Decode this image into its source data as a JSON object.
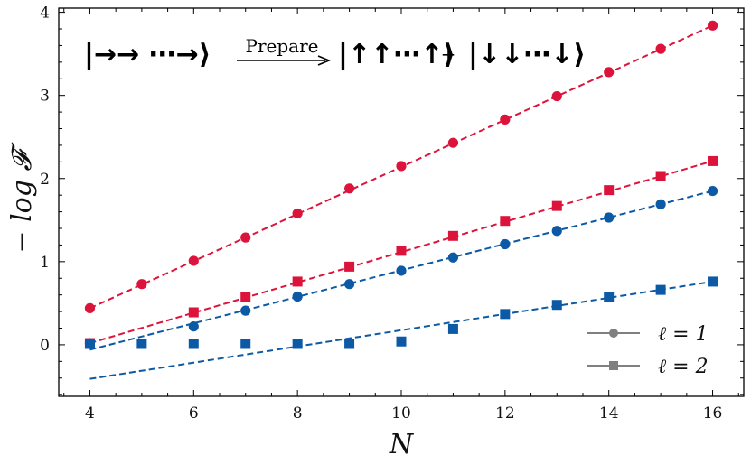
{
  "chart_data": {
    "type": "scatter",
    "title": "",
    "xlabel": "N",
    "ylabel": "− log 𝓕",
    "xlim": [
      3.4,
      16.6
    ],
    "ylim": [
      -0.62,
      4.05
    ],
    "xticks": [
      4,
      6,
      8,
      10,
      12,
      14,
      16
    ],
    "yticks": [
      0,
      1,
      2,
      3,
      4
    ],
    "grid": false,
    "legend_position": "bottom-right",
    "colors": {
      "red": "#dc143c",
      "blue": "#0c5aa6",
      "legend_gray": "#808080"
    },
    "series": [
      {
        "name": "red l=1 data",
        "color": "#dc143c",
        "marker": "circle",
        "x": [
          4,
          5,
          6,
          7,
          8,
          9,
          10,
          11,
          12,
          13,
          14,
          15,
          16
        ],
        "y": [
          0.44,
          0.73,
          1.01,
          1.29,
          1.58,
          1.88,
          2.15,
          2.43,
          2.71,
          2.99,
          3.28,
          3.56,
          3.84
        ]
      },
      {
        "name": "red l=2 data",
        "color": "#dc143c",
        "marker": "square",
        "x": [
          4,
          6,
          7,
          8,
          9,
          10,
          11,
          12,
          13,
          14,
          15,
          16
        ],
        "y": [
          0.02,
          0.39,
          0.58,
          0.76,
          0.94,
          1.13,
          1.31,
          1.49,
          1.67,
          1.86,
          2.03,
          2.21
        ]
      },
      {
        "name": "blue l=1 data",
        "color": "#0c5aa6",
        "marker": "circle",
        "x": [
          4,
          6,
          7,
          8,
          9,
          10,
          11,
          12,
          13,
          14,
          15,
          16
        ],
        "y": [
          0.02,
          0.22,
          0.41,
          0.58,
          0.73,
          0.89,
          1.05,
          1.21,
          1.37,
          1.53,
          1.69,
          1.85
        ]
      },
      {
        "name": "blue l=2 data",
        "color": "#0c5aa6",
        "marker": "square",
        "x": [
          4,
          5,
          6,
          7,
          8,
          9,
          10,
          11,
          12,
          13,
          14,
          15,
          16
        ],
        "y": [
          0.01,
          0.01,
          0.01,
          0.01,
          0.01,
          0.01,
          0.04,
          0.19,
          0.37,
          0.48,
          0.57,
          0.66,
          0.76
        ]
      }
    ],
    "fits": [
      {
        "name": "red l=1 fit",
        "color": "#dc143c",
        "x": [
          4,
          16
        ],
        "y": [
          0.44,
          3.84
        ]
      },
      {
        "name": "red l=2 fit",
        "color": "#dc143c",
        "x": [
          4,
          16
        ],
        "y": [
          0.02,
          2.21
        ]
      },
      {
        "name": "blue l=1 fit",
        "color": "#0c5aa6",
        "x": [
          4,
          16
        ],
        "y": [
          -0.06,
          1.85
        ]
      },
      {
        "name": "blue l=2 fit",
        "color": "#0c5aa6",
        "x": [
          4,
          16
        ],
        "y": [
          -0.41,
          0.76
        ]
      }
    ],
    "legend": [
      {
        "marker": "circle",
        "label": "ℓ = 1"
      },
      {
        "marker": "square",
        "label": "ℓ = 2"
      }
    ],
    "annotation": {
      "initial_state": "|→→ ⋯→⟩",
      "arrow_label": "Prepare",
      "target_state_1": "|↑↑⋯↑⟩",
      "plus": "+",
      "target_state_2": "|↓↓⋯↓⟩"
    }
  }
}
